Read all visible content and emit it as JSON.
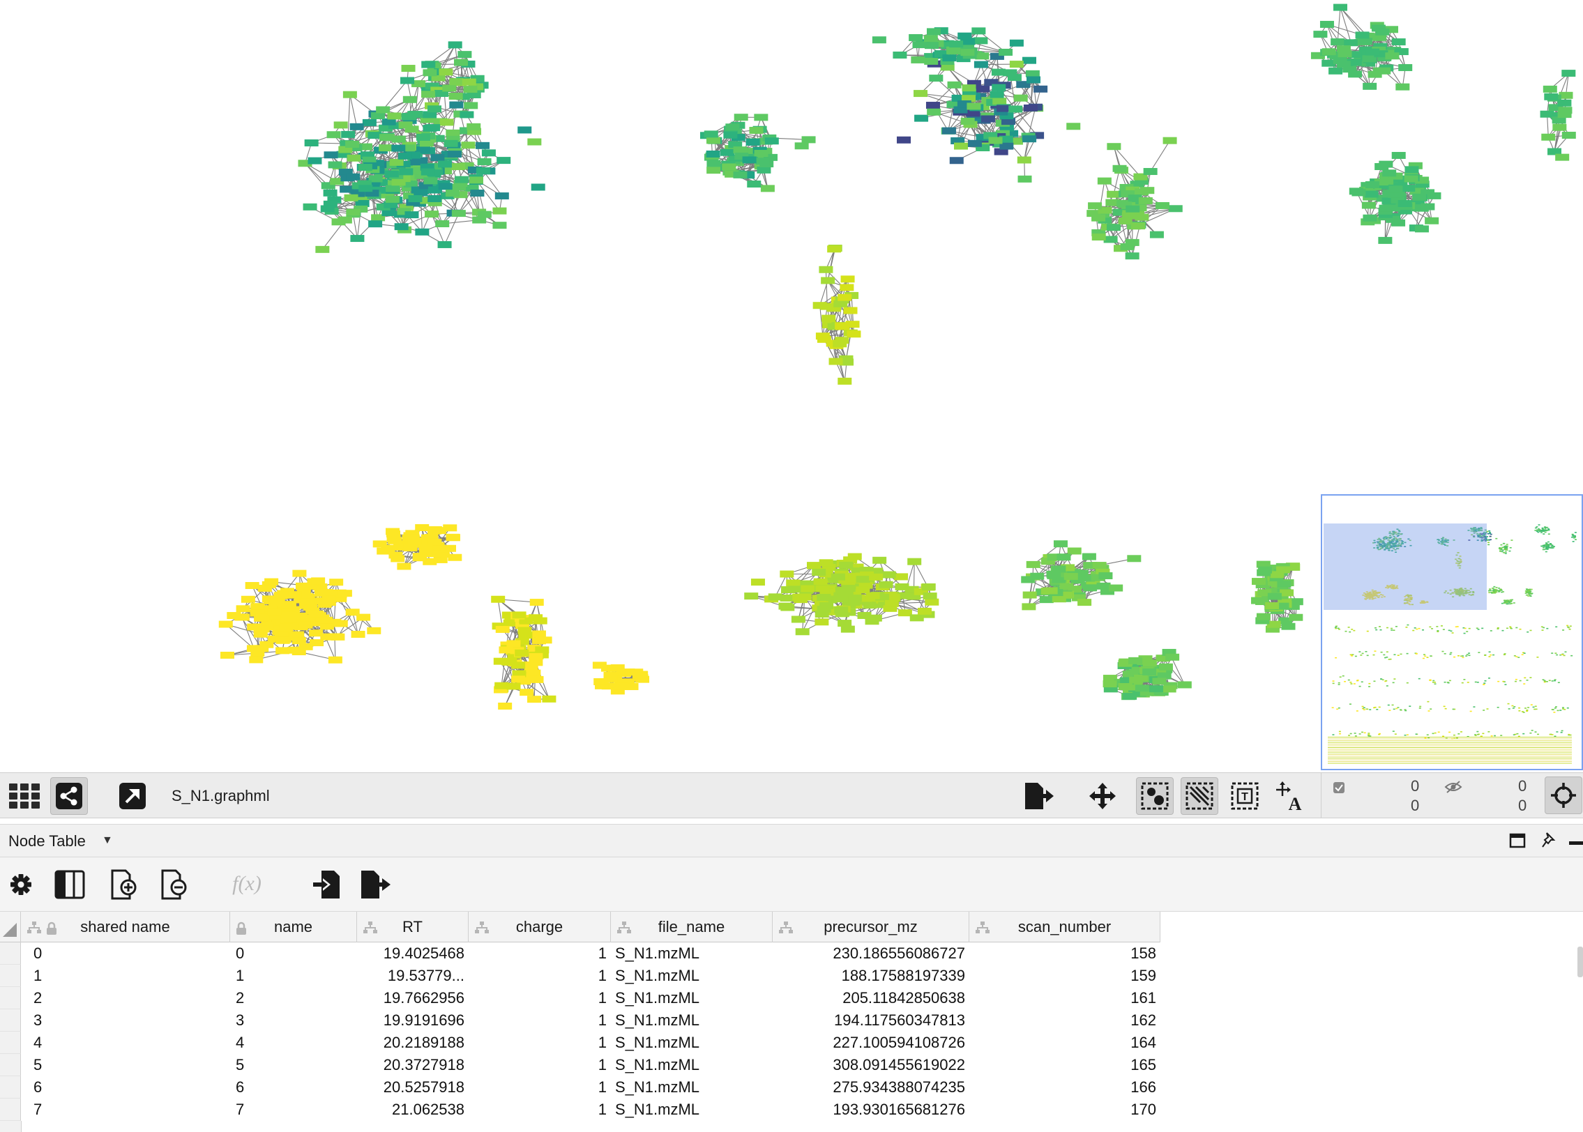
{
  "network": {
    "title": "S_N1.graphml",
    "node_colors": [
      "#fde725",
      "#d5e21a",
      "#bddf26",
      "#a5db36",
      "#8ed645",
      "#7ad151",
      "#6ccd5a",
      "#5ec962",
      "#4ac16d",
      "#3bbb75",
      "#2db27d",
      "#21a585",
      "#1f988b",
      "#23898e",
      "#2a788e",
      "#33638d",
      "#3b528b",
      "#404688"
    ]
  },
  "toolbar": {
    "grid_icon": "grid-icon",
    "network_icon": "share-network-icon",
    "open_icon": "open-external-icon",
    "export_icon": "export-network-icon",
    "layout_icon": "layout-move-icon",
    "show_nodes_icon": "node-selection-icon",
    "show_edges_icon": "edge-selection-icon",
    "annotation_icon": "annotation-text-icon",
    "font_icon": "font-move-icon",
    "selection_counts": {
      "nodes_selected": "0",
      "nodes_total": "0",
      "edges_selected": "0",
      "edges_total": "0"
    },
    "fit_icon": "fit-crosshair-icon"
  },
  "table_panel": {
    "title": "Node Table",
    "columns": [
      "shared name",
      "name",
      "RT",
      "charge",
      "file_name",
      "precursor_mz",
      "scan_number"
    ],
    "rows": [
      [
        "0",
        "0",
        "19.4025468",
        "1",
        "S_N1.mzML",
        "230.186556086727",
        "158"
      ],
      [
        "1",
        "1",
        "19.53779...",
        "1",
        "S_N1.mzML",
        "188.17588197339",
        "159"
      ],
      [
        "2",
        "2",
        "19.7662956",
        "1",
        "S_N1.mzML",
        "205.11842850638",
        "161"
      ],
      [
        "3",
        "3",
        "19.9191696",
        "1",
        "S_N1.mzML",
        "194.117560347813",
        "162"
      ],
      [
        "4",
        "4",
        "20.2189188",
        "1",
        "S_N1.mzML",
        "227.100594108726",
        "164"
      ],
      [
        "5",
        "5",
        "20.3727918",
        "1",
        "S_N1.mzML",
        "308.091455619022",
        "165"
      ],
      [
        "6",
        "6",
        "20.5257918",
        "1",
        "S_N1.mzML",
        "275.934388074235",
        "166"
      ],
      [
        "7",
        "7",
        "21.062538",
        "1",
        "S_N1.mzML",
        "193.930165681276",
        "170"
      ]
    ]
  }
}
